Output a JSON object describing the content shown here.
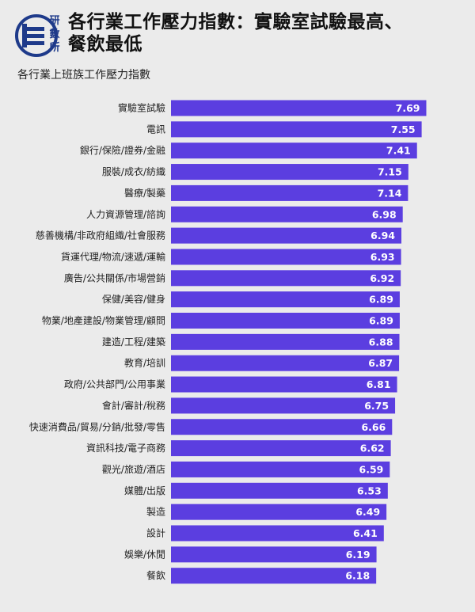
{
  "header": {
    "logo_text": "研數所",
    "title_line1": "各行業工作壓力指數：實驗室試驗最高、",
    "title_line2": "餐飲最低"
  },
  "colors": {
    "bar": "#5b3ee0",
    "logo": "#1e3a8a",
    "background": "#ebebeb"
  },
  "chart_data": {
    "type": "bar",
    "orientation": "horizontal",
    "title": "各行業工作壓力指數：實驗室試驗最高、餐飲最低",
    "subtitle": "各行業上班族工作壓力指數",
    "categories": [
      "實驗室試驗",
      "電訊",
      "銀行/保險/證券/金融",
      "服裝/成衣/紡織",
      "醫療/製藥",
      "人力資源管理/諮詢",
      "慈善機構/非政府組織/社會服務",
      "貨運代理/物流/速遞/運輸",
      "廣告/公共關係/市場營銷",
      "保健/美容/健身",
      "物業/地產建設/物業管理/顧問",
      "建造/工程/建築",
      "教育/培訓",
      "政府/公共部門/公用事業",
      "會計/審計/稅務",
      "快速消費品/貿易/分銷/批發/零售",
      "資訊科技/電子商務",
      "觀光/旅遊/酒店",
      "媒體/出版",
      "製造",
      "設計",
      "娛樂/休閒",
      "餐飲"
    ],
    "values": [
      7.69,
      7.55,
      7.41,
      7.15,
      7.14,
      6.98,
      6.94,
      6.93,
      6.92,
      6.89,
      6.89,
      6.88,
      6.87,
      6.81,
      6.75,
      6.66,
      6.62,
      6.59,
      6.53,
      6.49,
      6.41,
      6.19,
      6.18
    ],
    "value_labels": [
      "7.69",
      "7.55",
      "7.41",
      "7.15",
      "7.14",
      "6.98",
      "6.94",
      "6.93",
      "6.92",
      "6.89",
      "6.89",
      "6.88",
      "6.87",
      "6.81",
      "6.75",
      "6.66",
      "6.62",
      "6.59",
      "6.53",
      "6.49",
      "6.41",
      "6.19",
      "6.18"
    ],
    "xlim": [
      0,
      7.75
    ],
    "grid": false,
    "legend": "none",
    "data_labels": "inside-end"
  }
}
